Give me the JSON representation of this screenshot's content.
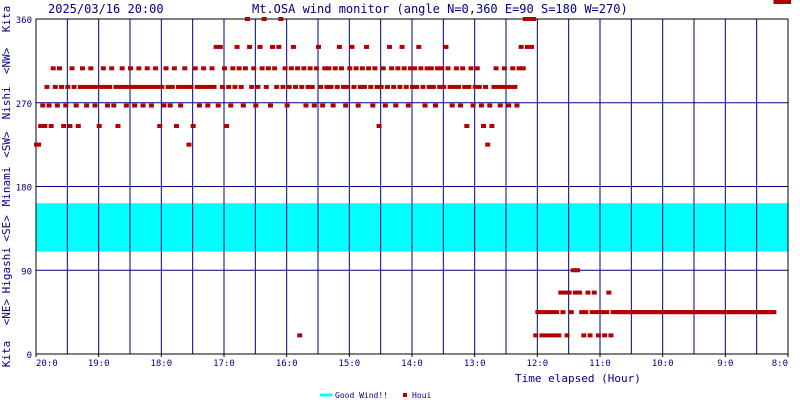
{
  "header": {
    "timestamp": "2025/03/16 20:00",
    "title": "Mt.OSA wind monitor (angle N=0,360 E=90 S=180 W=270)"
  },
  "colors": {
    "background": "#ffffff",
    "frame": "#000000",
    "grid": "#000080",
    "good_band": "#00ffff",
    "point": "#b00000",
    "text": "#000080"
  },
  "chart_data": {
    "type": "scatter",
    "title": "Mt.OSA wind monitor (angle N=0,360 E=90 S=180 W=270)",
    "xlabel": "Time elapsed (Hour)",
    "ylabel": "",
    "x_ticks": [
      "20:0",
      "19:0",
      "18:0",
      "17:0",
      "16:0",
      "15:0",
      "14:0",
      "13:0",
      "12:0",
      "11:0",
      "10:0",
      "9:0",
      "8:0"
    ],
    "xlim": [
      20,
      8
    ],
    "ylim": [
      0,
      360
    ],
    "y_ticks": [
      0,
      90,
      180,
      270,
      360
    ],
    "y_side_labels": [
      {
        "text": "Kita",
        "deg": 360
      },
      {
        "text": "<NW>",
        "deg": 315
      },
      {
        "text": "Nishi",
        "deg": 270
      },
      {
        "text": "<SW>",
        "deg": 225
      },
      {
        "text": "Minami",
        "deg": 180
      },
      {
        "text": "<SE>",
        "deg": 135
      },
      {
        "text": "Higashi",
        "deg": 90
      },
      {
        "text": "<NE>",
        "deg": 45
      },
      {
        "text": "Kita",
        "deg": 0
      }
    ],
    "grid": true,
    "legend_position": "bottom-center",
    "good_wind_band": {
      "name": "Good Wind!!",
      "from_deg": 110,
      "to_deg": 162
    },
    "series": [
      {
        "name": "Houi",
        "x_minutes_elapsed": [
          0,
          2,
          4,
          6,
          8,
          10,
          12,
          14,
          16,
          18,
          20,
          22,
          24,
          26,
          28,
          30,
          32,
          34,
          36,
          38,
          40,
          42,
          44,
          46,
          48,
          50,
          52,
          54,
          56,
          58,
          60,
          62,
          64,
          66,
          68,
          70,
          72,
          74,
          76,
          78,
          80,
          82,
          84,
          86,
          88,
          90,
          92,
          94,
          96,
          98,
          100,
          102,
          104,
          106,
          108,
          110,
          112,
          114,
          116,
          118,
          120,
          122,
          124,
          126,
          128,
          130,
          132,
          134,
          136,
          138,
          140,
          142,
          144,
          146,
          148,
          150,
          152,
          154,
          156,
          158,
          160,
          162,
          164,
          166,
          168,
          170,
          172,
          174,
          176,
          178,
          180,
          182,
          184,
          186,
          188,
          190,
          192,
          194,
          196,
          198,
          200,
          202,
          204,
          206,
          208,
          210,
          212,
          214,
          216,
          218,
          220,
          222,
          224,
          226,
          228,
          230,
          232,
          234,
          236,
          238,
          240,
          242,
          244,
          246,
          248,
          250,
          252,
          254,
          256,
          258,
          260,
          262,
          264,
          266,
          268,
          270,
          272,
          274,
          276,
          278,
          280,
          282,
          284,
          286,
          288,
          290,
          292,
          294,
          296,
          298,
          300,
          302,
          304,
          306,
          308,
          310,
          312,
          314,
          316,
          318,
          320,
          322,
          324,
          326,
          328,
          330,
          332,
          334,
          336,
          338,
          340,
          342,
          344,
          346,
          348,
          350,
          352,
          354,
          356,
          358,
          360,
          362,
          364,
          366,
          368,
          370,
          372,
          374,
          376,
          378,
          380,
          382,
          384,
          386,
          388,
          390,
          392,
          394,
          396,
          398,
          400,
          402,
          404,
          406,
          408,
          410,
          412,
          414,
          416,
          418,
          420,
          422,
          424,
          426,
          428,
          430,
          432,
          434,
          436,
          438,
          440,
          442,
          444,
          446,
          448,
          450,
          452,
          454,
          456,
          458,
          460,
          462,
          464,
          466,
          468,
          470,
          472,
          474,
          476,
          478,
          480,
          482,
          484,
          486,
          488,
          490,
          492,
          494,
          496,
          498,
          500,
          502,
          504,
          506,
          508,
          510,
          512,
          514,
          516,
          518,
          520,
          522,
          524,
          526,
          528,
          530,
          532,
          534,
          536,
          538,
          540,
          542,
          544,
          546,
          548,
          550,
          552,
          554,
          556,
          558,
          560,
          562,
          564,
          566,
          568,
          570,
          572,
          574,
          576,
          578,
          580,
          582,
          584,
          586,
          588,
          590,
          592,
          594,
          596,
          598,
          600,
          602,
          604,
          606,
          608,
          610,
          612,
          614,
          616,
          618,
          620,
          622,
          624,
          626,
          628,
          630,
          632,
          634,
          636,
          638,
          640,
          642,
          644,
          646,
          648,
          650,
          652,
          654,
          656,
          658,
          660,
          662,
          664,
          666,
          668,
          670,
          672,
          674,
          676,
          678,
          680,
          682,
          684,
          686,
          688,
          690,
          692,
          694,
          696,
          698,
          700,
          702,
          704,
          706,
          708,
          710,
          712,
          714,
          716,
          718,
          720
        ],
        "y_degrees": [
          225,
          225,
          245,
          267,
          245,
          287,
          267,
          245,
          307,
          287,
          267,
          307,
          287,
          245,
          267,
          287,
          245,
          307,
          287,
          267,
          245,
          287,
          307,
          287,
          267,
          287,
          307,
          287,
          267,
          287,
          245,
          287,
          307,
          287,
          267,
          287,
          307,
          267,
          287,
          245,
          287,
          307,
          287,
          267,
          287,
          307,
          287,
          267,
          287,
          307,
          287,
          267,
          287,
          307,
          287,
          267,
          287,
          307,
          287,
          245,
          287,
          267,
          307,
          287,
          267,
          287,
          307,
          245,
          287,
          267,
          287,
          307,
          287,
          225,
          287,
          245,
          307,
          287,
          267,
          287,
          307,
          287,
          267,
          287,
          307,
          287,
          330,
          267,
          330,
          287,
          307,
          245,
          287,
          267,
          307,
          287,
          330,
          307,
          287,
          267,
          307,
          360,
          330,
          287,
          307,
          267,
          287,
          330,
          307,
          360,
          287,
          307,
          267,
          330,
          307,
          287,
          330,
          360,
          287,
          307,
          267,
          287,
          307,
          330,
          287,
          307,
          20,
          287,
          307,
          267,
          287,
          307,
          287,
          267,
          307,
          330,
          287,
          267,
          307,
          287,
          307,
          287,
          267,
          307,
          287,
          330,
          307,
          287,
          267,
          287,
          307,
          330,
          287,
          307,
          267,
          287,
          307,
          287,
          330,
          307,
          287,
          267,
          307,
          287,
          245,
          287,
          307,
          267,
          287,
          330,
          307,
          287,
          267,
          307,
          287,
          330,
          307,
          287,
          267,
          307,
          287,
          307,
          287,
          330,
          307,
          287,
          267,
          307,
          287,
          307,
          287,
          267,
          307,
          287,
          307,
          287,
          330,
          307,
          287,
          267,
          287,
          307,
          287,
          267,
          307,
          287,
          245,
          287,
          307,
          267,
          287,
          307,
          287,
          267,
          245,
          287,
          225,
          267,
          245,
          287,
          307,
          287,
          267,
          287,
          307,
          287,
          267,
          287,
          307,
          287,
          267,
          307,
          330,
          307,
          360,
          330,
          360,
          330,
          360,
          20,
          45,
          45,
          20,
          45,
          20,
          45,
          20,
          45,
          20,
          45,
          20,
          66,
          45,
          66,
          20,
          66,
          45,
          90,
          66,
          90,
          66,
          45,
          20,
          45,
          66,
          20,
          45,
          66,
          45,
          20,
          45,
          45,
          20,
          45,
          66,
          20,
          45,
          45,
          45,
          45,
          45,
          45,
          45,
          45,
          45,
          45,
          45,
          45,
          45,
          45,
          45,
          45,
          45,
          45,
          45,
          45,
          45,
          45,
          45,
          45,
          45,
          45,
          45,
          45,
          45,
          45,
          45,
          45,
          45,
          45,
          45,
          45,
          45,
          45,
          45,
          45,
          45,
          45,
          45,
          45,
          45,
          45,
          45,
          45,
          45,
          45,
          45,
          45,
          45,
          45,
          45,
          45,
          45,
          45,
          45,
          45,
          45,
          45,
          45,
          45,
          45,
          45,
          45,
          45,
          45,
          45,
          45,
          45,
          45,
          45,
          45,
          45,
          45,
          45
        ]
      }
    ],
    "legend": [
      {
        "name": "Good Wind!!",
        "color": "#00ffff"
      },
      {
        "name": "Houi",
        "color": "#b00000"
      }
    ]
  }
}
